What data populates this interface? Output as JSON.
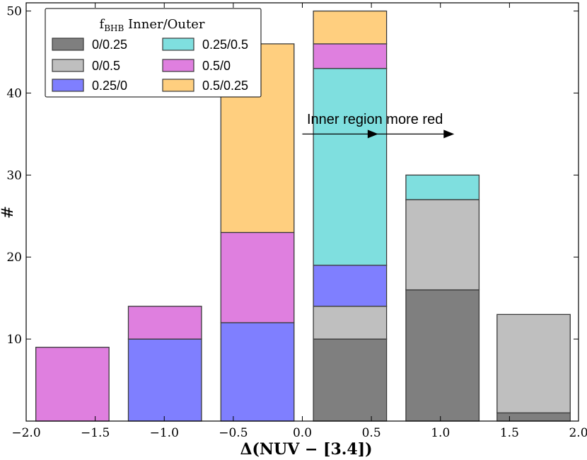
{
  "chart_data": {
    "type": "bar",
    "stacked": true,
    "xlabel": "Δ(NUV − [3.4])",
    "ylabel": "#",
    "xlim": [
      -2.0,
      2.0
    ],
    "ylim": [
      0,
      51
    ],
    "xticks": [
      -2.0,
      -1.5,
      -1.0,
      -0.5,
      0.0,
      0.5,
      1.0,
      1.5,
      2.0
    ],
    "xtick_labels": [
      "−2.0",
      "−1.5",
      "−1.0",
      "−0.5",
      "0.0",
      "0.5",
      "1.0",
      "1.5",
      "2.0"
    ],
    "yticks": [
      10,
      20,
      30,
      40,
      50
    ],
    "ytick_labels": [
      "10",
      "20",
      "30",
      "40",
      "50"
    ],
    "bar_width": 0.53,
    "bin_left_edges": [
      -1.93,
      -1.26,
      -0.59,
      0.08,
      0.75,
      1.41
    ],
    "series": [
      {
        "name": "0/0.25",
        "color": "#7f7f7f",
        "values": [
          0,
          0,
          0,
          10,
          16,
          1
        ]
      },
      {
        "name": "0/0.5",
        "color": "#bfbfbf",
        "values": [
          0,
          0,
          0,
          4,
          11,
          12
        ]
      },
      {
        "name": "0.25/0",
        "color": "#7f7fff",
        "values": [
          0,
          10,
          12,
          5,
          0,
          0
        ]
      },
      {
        "name": "0.25/0.5",
        "color": "#7fdfdf",
        "values": [
          0,
          0,
          0,
          24,
          3,
          0
        ]
      },
      {
        "name": "0.5/0",
        "color": "#df7fdf",
        "values": [
          9,
          4,
          11,
          3,
          0,
          0
        ]
      },
      {
        "name": "0.5/0.25",
        "color": "#ffcf7f",
        "values": [
          0,
          0,
          23,
          4,
          0,
          0
        ]
      }
    ],
    "legend": {
      "title_main": "f",
      "title_sub": "BHB",
      "title_rest": " Inner/Outer",
      "placement": "top-left"
    },
    "annotation": {
      "text": "Inner region more red",
      "arrow_from": [
        0.0,
        35
      ],
      "arrow_to": [
        1.1,
        35
      ],
      "arrow_mid": 0.55
    }
  }
}
